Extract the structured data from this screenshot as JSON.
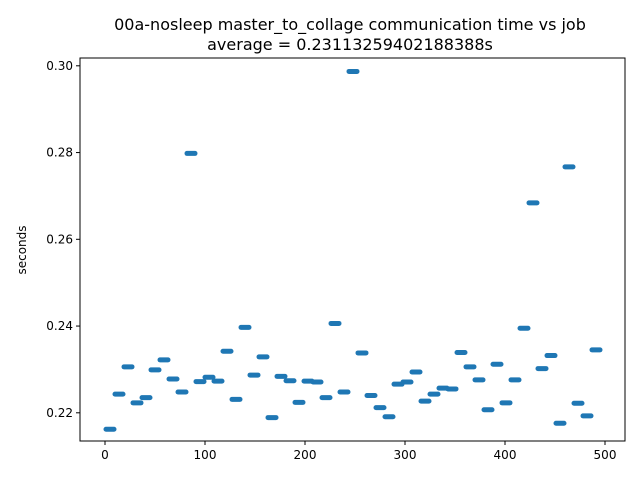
{
  "chart_data": {
    "type": "scatter",
    "title": "00a-nosleep master_to_collage communication time vs job",
    "subtitle": "average = 0.23113259402188388s",
    "xlabel": "",
    "ylabel": "seconds",
    "xlim": [
      -25,
      520
    ],
    "ylim": [
      0.2135,
      0.3018
    ],
    "x_ticks": [
      0,
      100,
      200,
      300,
      400,
      500
    ],
    "y_ticks": [
      0.22,
      0.24,
      0.26,
      0.28,
      0.3
    ],
    "x_tick_labels": [
      "0",
      "100",
      "200",
      "300",
      "400",
      "500"
    ],
    "y_tick_labels": [
      "0.22",
      "0.24",
      "0.26",
      "0.28",
      "0.30"
    ],
    "grid": false,
    "marker_color": "#1f77b4",
    "points": [
      {
        "x": 3,
        "y": 0.2162
      },
      {
        "x": 12,
        "y": 0.2243
      },
      {
        "x": 21,
        "y": 0.2306
      },
      {
        "x": 30,
        "y": 0.2223
      },
      {
        "x": 39,
        "y": 0.2235
      },
      {
        "x": 48,
        "y": 0.2299
      },
      {
        "x": 57,
        "y": 0.2322
      },
      {
        "x": 66,
        "y": 0.2278
      },
      {
        "x": 75,
        "y": 0.2248
      },
      {
        "x": 84,
        "y": 0.2798
      },
      {
        "x": 93,
        "y": 0.2272
      },
      {
        "x": 102,
        "y": 0.2282
      },
      {
        "x": 111,
        "y": 0.2273
      },
      {
        "x": 120,
        "y": 0.2342
      },
      {
        "x": 129,
        "y": 0.2231
      },
      {
        "x": 138,
        "y": 0.2397
      },
      {
        "x": 147,
        "y": 0.2287
      },
      {
        "x": 156,
        "y": 0.2329
      },
      {
        "x": 165,
        "y": 0.2189
      },
      {
        "x": 174,
        "y": 0.2284
      },
      {
        "x": 183,
        "y": 0.2274
      },
      {
        "x": 192,
        "y": 0.2224
      },
      {
        "x": 201,
        "y": 0.2273
      },
      {
        "x": 210,
        "y": 0.2271
      },
      {
        "x": 219,
        "y": 0.2235
      },
      {
        "x": 228,
        "y": 0.2406
      },
      {
        "x": 237,
        "y": 0.2248
      },
      {
        "x": 246,
        "y": 0.2987
      },
      {
        "x": 255,
        "y": 0.2338
      },
      {
        "x": 264,
        "y": 0.224
      },
      {
        "x": 273,
        "y": 0.2212
      },
      {
        "x": 282,
        "y": 0.2191
      },
      {
        "x": 291,
        "y": 0.2266
      },
      {
        "x": 300,
        "y": 0.2271
      },
      {
        "x": 309,
        "y": 0.2294
      },
      {
        "x": 318,
        "y": 0.2227
      },
      {
        "x": 327,
        "y": 0.2243
      },
      {
        "x": 336,
        "y": 0.2257
      },
      {
        "x": 345,
        "y": 0.2255
      },
      {
        "x": 354,
        "y": 0.2339
      },
      {
        "x": 363,
        "y": 0.2306
      },
      {
        "x": 372,
        "y": 0.2276
      },
      {
        "x": 381,
        "y": 0.2207
      },
      {
        "x": 390,
        "y": 0.2312
      },
      {
        "x": 399,
        "y": 0.2223
      },
      {
        "x": 408,
        "y": 0.2276
      },
      {
        "x": 417,
        "y": 0.2395
      },
      {
        "x": 426,
        "y": 0.2684
      },
      {
        "x": 435,
        "y": 0.2302
      },
      {
        "x": 444,
        "y": 0.2332
      },
      {
        "x": 453,
        "y": 0.2176
      },
      {
        "x": 462,
        "y": 0.2767
      },
      {
        "x": 471,
        "y": 0.2222
      },
      {
        "x": 480,
        "y": 0.2193
      },
      {
        "x": 489,
        "y": 0.2345
      }
    ]
  }
}
